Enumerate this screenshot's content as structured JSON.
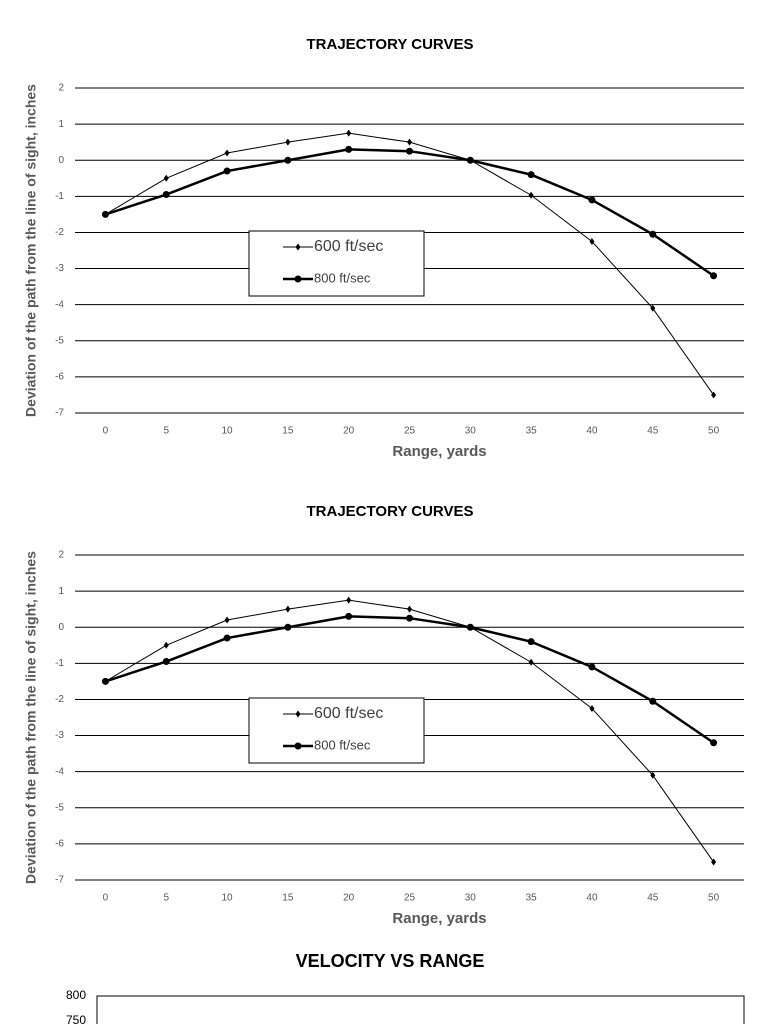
{
  "chart_data": [
    {
      "type": "line",
      "title": "TRAJECTORY CURVES",
      "x_label": "Range, yards",
      "y_label": "Deviation of the path from the line of sight, inches",
      "x": [
        0,
        5,
        10,
        15,
        20,
        25,
        30,
        35,
        40,
        45,
        50
      ],
      "xlim": [
        -2.5,
        52.5
      ],
      "xticks": [
        0,
        5,
        10,
        15,
        20,
        25,
        30,
        35,
        40,
        45,
        50
      ],
      "ylim": [
        -7,
        2
      ],
      "yticks": [
        -7,
        -6,
        -5,
        -4,
        -3,
        -2,
        -1,
        0,
        1,
        2
      ],
      "grid": true,
      "legend": "center-left",
      "series": [
        {
          "name": "600 ft/sec",
          "color": "#000000",
          "marker": "diamond",
          "values": [
            -1.5,
            -0.5,
            0.2,
            0.5,
            0.75,
            0.5,
            0,
            -0.97,
            -2.25,
            -4.1,
            -6.5
          ]
        },
        {
          "name": "800 ft/sec",
          "color": "#000000",
          "marker": "circle",
          "values": [
            -1.5,
            -0.95,
            -0.3,
            0,
            0.3,
            0.25,
            0,
            -0.4,
            -1.1,
            -2.05,
            -3.2
          ]
        }
      ]
    },
    {
      "type": "line",
      "title": "TRAJECTORY CURVES",
      "x_label": "Range, yards",
      "y_label": "Deviation of the path from the line of sight, inches",
      "x": [
        0,
        5,
        10,
        15,
        20,
        25,
        30,
        35,
        40,
        45,
        50
      ],
      "xlim": [
        -2.5,
        52.5
      ],
      "xticks": [
        0,
        5,
        10,
        15,
        20,
        25,
        30,
        35,
        40,
        45,
        50
      ],
      "ylim": [
        -7,
        2
      ],
      "yticks": [
        -7,
        -6,
        -5,
        -4,
        -3,
        -2,
        -1,
        0,
        1,
        2
      ],
      "grid": true,
      "legend": "center-left",
      "series": [
        {
          "name": "600 ft/sec",
          "color": "#000000",
          "marker": "diamond",
          "values": [
            -1.5,
            -0.5,
            0.2,
            0.5,
            0.75,
            0.5,
            0,
            -0.97,
            -2.25,
            -4.1,
            -6.5
          ]
        },
        {
          "name": "800 ft/sec",
          "color": "#000000",
          "marker": "circle",
          "values": [
            -1.5,
            -0.95,
            -0.3,
            0,
            0.3,
            0.25,
            0,
            -0.4,
            -1.1,
            -2.05,
            -3.2
          ]
        }
      ]
    },
    {
      "type": "line",
      "title": "VELOCITY VS RANGE",
      "ylim": [
        750,
        800
      ],
      "yticks": [
        750,
        800
      ],
      "grid": false,
      "series": []
    }
  ]
}
